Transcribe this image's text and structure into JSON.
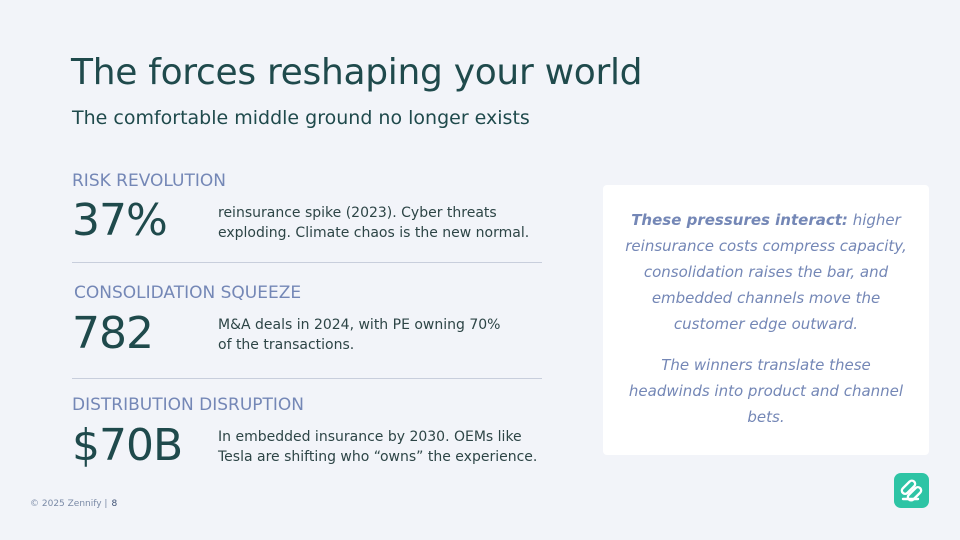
{
  "title": "The forces reshaping your world",
  "subtitle": "The comfortable middle ground no longer exists",
  "sections": [
    {
      "label": "RISK REVOLUTION",
      "stat": "37%",
      "desc_line1": "reinsurance spike (2023). Cyber threats",
      "desc_line2": "exploding. Climate chaos is the new normal."
    },
    {
      "label": "CONSOLIDATION SQUEEZE",
      "stat": "782",
      "desc_line1": "M&A deals in 2024, with PE owning 70%",
      "desc_line2": "of the transactions."
    },
    {
      "label": "DISTRIBUTION DISRUPTION",
      "stat": "$70B",
      "desc_line1": "In embedded insurance by 2030. OEMs like",
      "desc_line2": "Tesla are shifting who “owns” the experience."
    }
  ],
  "card": {
    "lead": "These pressures interact:",
    "para1": "higher reinsurance costs compress capacity, consolidation raises the bar, and embedded channels move the customer edge outward.",
    "para2": "The winners translate these headwinds into product and channel bets."
  },
  "footer": {
    "copyright": "© 2025 Zennify |",
    "page": "8"
  },
  "colors": {
    "title": "#1f4a4c",
    "accent": "#7487b6",
    "logo": "#2ec4a5",
    "background": "#f2f4f9"
  },
  "logo_icon": "zennify-logo-icon"
}
